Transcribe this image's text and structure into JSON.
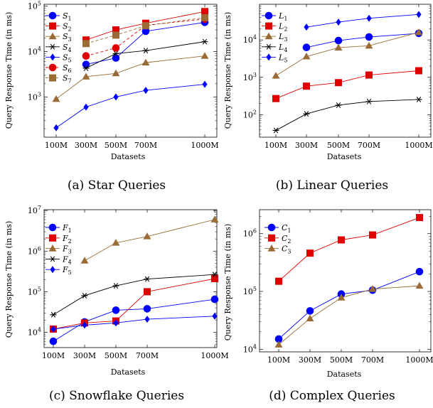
{
  "chart_data": [
    {
      "id": "star",
      "type": "line",
      "yscale": "log",
      "caption": "(a)  Star Queries",
      "xlabel": "Datasets",
      "ylabel": "Query Response Time (in ms)",
      "categories": [
        "100M",
        "300M",
        "500M",
        "700M",
        "1000M"
      ],
      "y_ticks": [
        {
          "value": 1000,
          "label": "10^3"
        },
        {
          "value": 10000,
          "label": "10^4"
        },
        {
          "value": 100000,
          "label": "10^5"
        }
      ],
      "ylim": [
        130,
        110000
      ],
      "series": [
        {
          "name": "S1",
          "sub": "1",
          "base": "S",
          "color": "#0000ff",
          "marker": "circle",
          "dash": false,
          "values": [
            null,
            5200,
            7200,
            28000,
            44000
          ]
        },
        {
          "name": "S2",
          "sub": "2",
          "base": "S",
          "color": "#e00000",
          "marker": "square",
          "dash": false,
          "values": [
            null,
            18000,
            30000,
            42000,
            76000
          ]
        },
        {
          "name": "S3",
          "sub": "3",
          "base": "S",
          "color": "#9a6b35",
          "marker": "triangle",
          "dash": false,
          "values": [
            900,
            2800,
            3300,
            5700,
            8000
          ]
        },
        {
          "name": "S4",
          "sub": "4",
          "base": "S",
          "color": "#000000",
          "marker": "star",
          "dash": false,
          "values": [
            null,
            4300,
            9000,
            10500,
            16500
          ]
        },
        {
          "name": "S5",
          "sub": "5",
          "base": "S",
          "color": "#0000ff",
          "marker": "diamond",
          "dash": false,
          "values": [
            210,
            600,
            1000,
            1400,
            1900
          ]
        },
        {
          "name": "S6",
          "sub": "6",
          "base": "S",
          "color": "#e00000",
          "marker": "circle",
          "dash": true,
          "values": [
            null,
            8000,
            12000,
            38000,
            52000
          ]
        },
        {
          "name": "S7",
          "sub": "7",
          "base": "S",
          "color": "#9a6b35",
          "marker": "square",
          "dash": true,
          "values": [
            null,
            15000,
            23000,
            37000,
            56000
          ]
        }
      ]
    },
    {
      "id": "linear",
      "type": "line",
      "yscale": "log",
      "caption": "(b)  Linear Queries",
      "xlabel": "Datasets",
      "ylabel": "Query Response Time (in ms)",
      "categories": [
        "100M",
        "300M",
        "500M",
        "700M",
        "1000M"
      ],
      "y_ticks": [
        {
          "value": 100,
          "label": "10^2"
        },
        {
          "value": 1000,
          "label": "10^3"
        },
        {
          "value": 10000,
          "label": "10^4"
        }
      ],
      "ylim": [
        25,
        90000
      ],
      "series": [
        {
          "name": "L1",
          "sub": "1",
          "base": "L",
          "color": "#0000ff",
          "marker": "circle",
          "dash": false,
          "values": [
            null,
            6300,
            9600,
            12000,
            15000
          ]
        },
        {
          "name": "L2",
          "sub": "2",
          "base": "L",
          "color": "#e00000",
          "marker": "square",
          "dash": false,
          "values": [
            270,
            580,
            720,
            1150,
            1500
          ]
        },
        {
          "name": "L3",
          "sub": "3",
          "base": "L",
          "color": "#9a6b35",
          "marker": "triangle",
          "dash": false,
          "values": [
            1100,
            3600,
            6200,
            7000,
            16000
          ]
        },
        {
          "name": "L4",
          "sub": "4",
          "base": "L",
          "color": "#000000",
          "marker": "star",
          "dash": false,
          "values": [
            38,
            105,
            180,
            225,
            255
          ]
        },
        {
          "name": "L5",
          "sub": "5",
          "base": "L",
          "color": "#0000ff",
          "marker": "diamond",
          "dash": false,
          "values": [
            null,
            22000,
            30000,
            38000,
            48000
          ]
        }
      ]
    },
    {
      "id": "snowflake",
      "type": "line",
      "yscale": "log",
      "caption": "(c)  Snowflake Queries",
      "xlabel": "Datasets",
      "ylabel": "Query Response Time (in ms)",
      "categories": [
        "100M",
        "300M",
        "500M",
        "700M",
        "1000M"
      ],
      "y_ticks": [
        {
          "value": 10000,
          "label": "10^4"
        },
        {
          "value": 100000,
          "label": "10^5"
        },
        {
          "value": 1000000,
          "label": "10^6"
        },
        {
          "value": 10000000,
          "label": "10^7"
        }
      ],
      "ylim": [
        4200,
        10500000
      ],
      "series": [
        {
          "name": "F1",
          "sub": "1",
          "base": "F",
          "color": "#0000ff",
          "marker": "circle",
          "dash": false,
          "values": [
            6000,
            18000,
            35000,
            38000,
            65000
          ]
        },
        {
          "name": "F2",
          "sub": "2",
          "base": "F",
          "color": "#e00000",
          "marker": "square",
          "dash": false,
          "values": [
            12000,
            17000,
            19000,
            100000,
            210000
          ]
        },
        {
          "name": "F3",
          "sub": "3",
          "base": "F",
          "color": "#9a6b35",
          "marker": "triangle",
          "dash": false,
          "values": [
            null,
            580000,
            1600000,
            2300000,
            6000000
          ]
        },
        {
          "name": "F4",
          "sub": "4",
          "base": "F",
          "color": "#000000",
          "marker": "star",
          "dash": false,
          "values": [
            27000,
            80000,
            140000,
            205000,
            265000
          ]
        },
        {
          "name": "F5",
          "sub": "5",
          "base": "F",
          "color": "#0000ff",
          "marker": "diamond",
          "dash": false,
          "values": [
            12000,
            15000,
            17000,
            21000,
            25000
          ]
        }
      ]
    },
    {
      "id": "complex",
      "type": "line",
      "yscale": "log",
      "caption": "(d)  Complex Queries",
      "xlabel": "Datasets",
      "ylabel": "Query Response Time (in ms)",
      "categories": [
        "100M",
        "300M",
        "500M",
        "700M",
        "1000M"
      ],
      "y_ticks": [
        {
          "value": 10000,
          "label": "10^4"
        },
        {
          "value": 100000,
          "label": "10^5"
        },
        {
          "value": 1000000,
          "label": "10^6"
        }
      ],
      "ylim": [
        9000,
        2600000
      ],
      "series": [
        {
          "name": "C1",
          "sub": "1",
          "base": "C",
          "color": "#0000ff",
          "marker": "circle",
          "dash": false,
          "values": [
            15000,
            46000,
            90000,
            105000,
            220000
          ]
        },
        {
          "name": "C2",
          "sub": "2",
          "base": "C",
          "color": "#e00000",
          "marker": "square",
          "dash": false,
          "values": [
            150000,
            460000,
            780000,
            950000,
            1900000
          ]
        },
        {
          "name": "C3",
          "sub": "3",
          "base": "C",
          "color": "#9a6b35",
          "marker": "triangle",
          "dash": false,
          "values": [
            12000,
            34000,
            78000,
            110000,
            125000
          ]
        }
      ]
    }
  ]
}
